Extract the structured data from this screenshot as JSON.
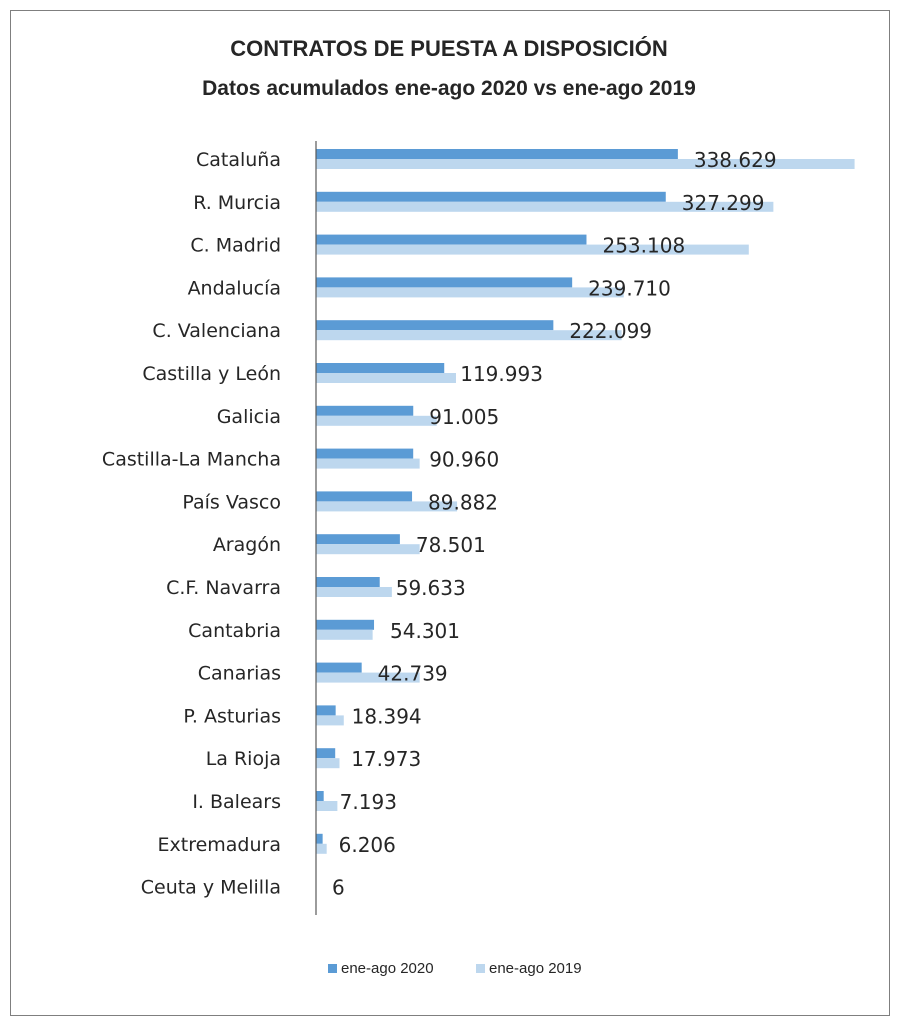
{
  "chart_data": {
    "type": "bar",
    "orientation": "horizontal",
    "title": "CONTRATOS DE PUESTA A DISPOSICIÓN",
    "subtitle": "Datos acumulados ene-ago 2020 vs ene-ago 2019",
    "categories": [
      "Cataluña",
      "R. Murcia",
      "C. Madrid",
      "Andalucía",
      "C. Valenciana",
      "Castilla y León",
      "Galicia",
      "Castilla-La Mancha",
      "País Vasco",
      "Aragón",
      "C.F. Navarra",
      "Cantabria",
      "Canarias",
      "P. Asturias",
      "La Rioja",
      "I. Balears",
      "Extremadura",
      "Ceuta y Melilla"
    ],
    "data_labels": [
      "338.629",
      "327.299",
      "253.108",
      "239.710",
      "222.099",
      "119.993",
      "91.005",
      "90.960",
      "89.882",
      "78.501",
      "59.633",
      "54.301",
      "42.739",
      "18.394",
      "17.973",
      "7.193",
      "6.206",
      "6"
    ],
    "series": [
      {
        "name": "ene-ago 2020",
        "color": "#5b9bd5",
        "values": [
          338629,
          327299,
          253108,
          239710,
          222099,
          119993,
          91005,
          90960,
          89882,
          78501,
          59633,
          54301,
          42739,
          18394,
          17973,
          7193,
          6206,
          6
        ]
      },
      {
        "name": "ene-ago 2019",
        "color": "#bdd7ee",
        "values": [
          504000,
          428000,
          405000,
          288000,
          286000,
          131000,
          113000,
          97000,
          132000,
          97000,
          71000,
          53000,
          97000,
          26000,
          22000,
          20000,
          10000,
          1
        ]
      }
    ],
    "xlim": [
      0,
      510000
    ],
    "grid": false,
    "legend_position": "bottom"
  }
}
